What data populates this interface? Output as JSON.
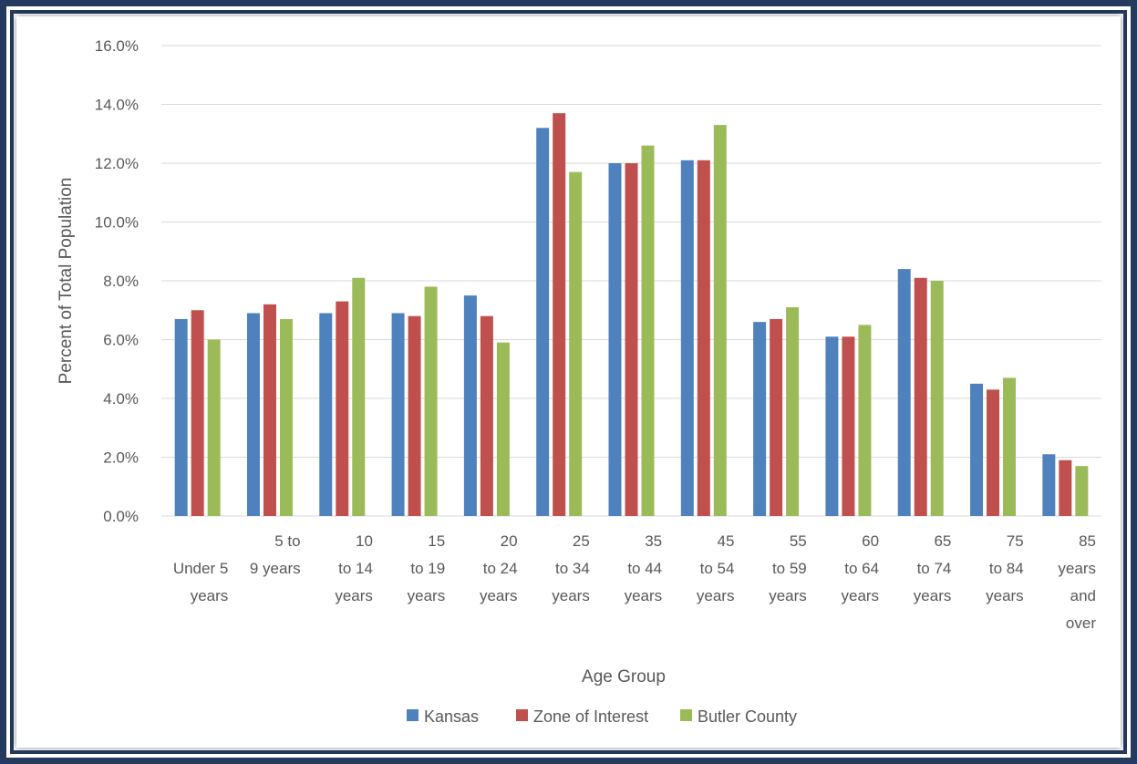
{
  "chart_data": {
    "type": "bar",
    "xlabel": "Age Group",
    "ylabel": "Percent of Total Population",
    "ylim": [
      0,
      16
    ],
    "y_ticks": [
      "0.0%",
      "2.0%",
      "4.0%",
      "6.0%",
      "8.0%",
      "10.0%",
      "12.0%",
      "14.0%",
      "16.0%"
    ],
    "grid": true,
    "legend_position": "bottom",
    "categories": [
      "Under 5 years",
      "5 to 9 years",
      "10 to 14 years",
      "15 to 19 years",
      "20 to 24 years",
      "25 to 34 years",
      "35 to 44 years",
      "45 to 54 years",
      "55 to 59 years",
      "60 to 64 years",
      "65 to 74 years",
      "75 to 84 years",
      "85 years and over"
    ],
    "category_lines": [
      [
        "",
        "Under 5",
        "years"
      ],
      [
        "5 to",
        "9 years",
        ""
      ],
      [
        "10",
        "to 14",
        "years"
      ],
      [
        "15",
        "to 19",
        "years"
      ],
      [
        "20",
        "to 24",
        "years"
      ],
      [
        "25",
        "to 34",
        "years"
      ],
      [
        "35",
        "to 44",
        "years"
      ],
      [
        "45",
        "to 54",
        "years"
      ],
      [
        "55",
        "to 59",
        "years"
      ],
      [
        "60",
        "to 64",
        "years"
      ],
      [
        "65",
        "to 74",
        "years"
      ],
      [
        "75",
        "to 84",
        "years"
      ],
      [
        "85",
        "years",
        "and",
        "over"
      ]
    ],
    "series": [
      {
        "name": "Kansas",
        "color": "#4f81bd",
        "values": [
          6.7,
          6.9,
          6.9,
          6.9,
          7.5,
          13.2,
          12.0,
          12.1,
          6.6,
          6.1,
          8.4,
          4.5,
          2.1
        ]
      },
      {
        "name": "Zone of Interest",
        "color": "#c0504d",
        "values": [
          7.0,
          7.2,
          7.3,
          6.8,
          6.8,
          13.7,
          12.0,
          12.1,
          6.7,
          6.1,
          8.1,
          4.3,
          1.9
        ]
      },
      {
        "name": "Butler County",
        "color": "#9bbb59",
        "values": [
          6.0,
          6.7,
          8.1,
          7.8,
          5.9,
          11.7,
          12.6,
          13.3,
          7.1,
          6.5,
          8.0,
          4.7,
          1.7
        ]
      }
    ]
  }
}
